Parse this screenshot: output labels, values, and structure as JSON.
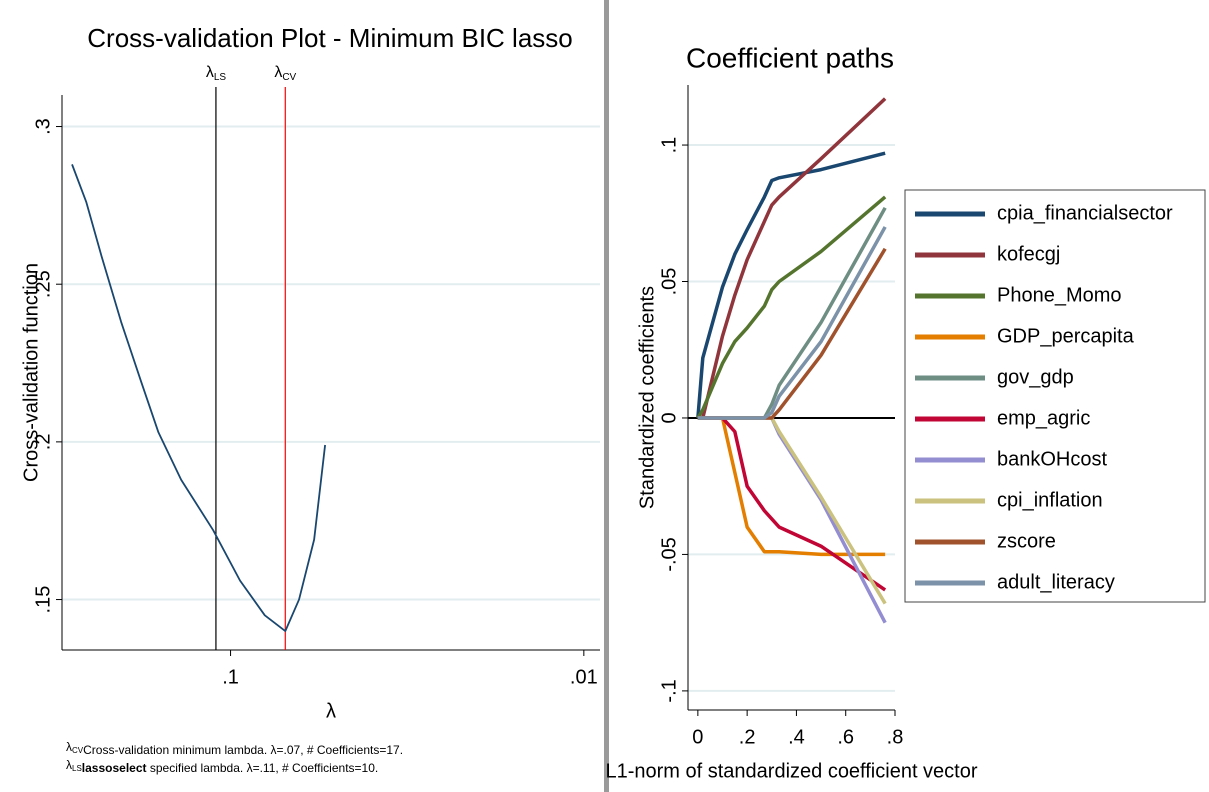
{
  "chart_data": [
    {
      "type": "line",
      "title": "Cross-validation Plot - Minimum BIC lasso",
      "xlabel": "λ",
      "ylabel": "Cross-validation function",
      "x": [
        0.281,
        0.256,
        0.232,
        0.204,
        0.179,
        0.16,
        0.138,
        0.112,
        0.094,
        0.08,
        0.07,
        0.064,
        0.058,
        0.054
      ],
      "values": [
        0.288,
        0.276,
        0.259,
        0.238,
        0.219,
        0.203,
        0.188,
        0.172,
        0.156,
        0.145,
        0.14,
        0.15,
        0.169,
        0.199
      ],
      "color": "#1a476f",
      "xscale": "log",
      "xlim": [
        0.3,
        0.009
      ],
      "xticks": [
        {
          "value": 0.1,
          "label": ".1"
        },
        {
          "value": 0.01,
          "label": ".01"
        }
      ],
      "ylim": [
        0.134,
        0.31
      ],
      "yticks": [
        {
          "value": 0.15,
          "label": ".15"
        },
        {
          "value": 0.2,
          "label": ".2"
        },
        {
          "value": 0.25,
          "label": ".25"
        },
        {
          "value": 0.3,
          "label": ".3"
        }
      ],
      "grid": true,
      "reference_lines": [
        {
          "symbol": "λ",
          "sub": "LS",
          "value": 0.11,
          "color": "#000000"
        },
        {
          "symbol": "λ",
          "sub": "CV",
          "value": 0.07,
          "color": "#ff0000"
        }
      ],
      "notes": [
        {
          "symbol": "λ",
          "sub": "CV",
          "bold": "",
          "text": "Cross-validation minimum lambda.  λ=.07, # Coefficients=17."
        },
        {
          "symbol": "λ",
          "sub": "LS",
          "bold": "lassoselect",
          "text": " specified lambda.  λ=.11, # Coefficients=10."
        }
      ]
    },
    {
      "type": "line",
      "title": "Coefficient paths",
      "xlabel": "L1-norm of standardized coefficient vector",
      "ylabel": "Standardized coefficients",
      "x": [
        0,
        0.02,
        0.1,
        0.15,
        0.2,
        0.27,
        0.3,
        0.33,
        0.5,
        0.76
      ],
      "series": [
        {
          "name": "cpia_financialsector",
          "color": "#1a476f",
          "values": [
            0,
            0.022,
            0.048,
            0.06,
            0.069,
            0.081,
            0.087,
            0.088,
            0.091,
            0.097
          ]
        },
        {
          "name": "kofecgj",
          "color": "#90353b",
          "values": [
            0,
            0,
            0.03,
            0.045,
            0.058,
            0.072,
            0.078,
            0.081,
            0.095,
            0.117
          ]
        },
        {
          "name": "Phone_Momo",
          "color": "#55752f",
          "values": [
            0,
            0.003,
            0.02,
            0.028,
            0.033,
            0.041,
            0.047,
            0.05,
            0.061,
            0.081
          ]
        },
        {
          "name": "GDP_percapita",
          "color": "#e37e00",
          "values": [
            0,
            0,
            0,
            -0.02,
            -0.04,
            -0.049,
            -0.049,
            -0.049,
            -0.05,
            -0.05
          ]
        },
        {
          "name": "gov_gdp",
          "color": "#6e8e84",
          "values": [
            0,
            0,
            0,
            0,
            0,
            0,
            0.005,
            0.012,
            0.035,
            0.077
          ]
        },
        {
          "name": "emp_agric",
          "color": "#c10534",
          "values": [
            0,
            0,
            0,
            -0.005,
            -0.025,
            -0.034,
            -0.037,
            -0.04,
            -0.047,
            -0.063
          ]
        },
        {
          "name": "bankOHcost",
          "color": "#938dd2",
          "values": [
            0,
            0,
            0,
            0,
            0,
            0,
            0,
            -0.006,
            -0.03,
            -0.075
          ]
        },
        {
          "name": "cpi_inflation",
          "color": "#cac27e",
          "values": [
            0,
            0,
            0,
            0,
            0,
            0,
            0,
            -0.005,
            -0.029,
            -0.068
          ]
        },
        {
          "name": "zscore",
          "color": "#a0522d",
          "values": [
            0,
            0,
            0,
            0,
            0,
            0,
            0,
            0.003,
            0.023,
            0.062
          ]
        },
        {
          "name": "adult_literacy",
          "color": "#7b92a8",
          "values": [
            0,
            0,
            0,
            0,
            0,
            0,
            0.002,
            0.008,
            0.028,
            0.07
          ]
        }
      ],
      "xlim": [
        -0.04,
        0.8
      ],
      "xticks": [
        0,
        {
          "value": 0.2,
          "label": ".2"
        },
        {
          "value": 0.4,
          "label": ".4"
        },
        {
          "value": 0.6,
          "label": ".6"
        },
        {
          "value": 0.8,
          "label": ".8"
        }
      ],
      "ylim": [
        -0.107,
        0.122
      ],
      "yticks": [
        {
          "value": -0.1,
          "label": "-.1"
        },
        {
          "value": -0.05,
          "label": "-.05"
        },
        0,
        {
          "value": 0.05,
          "label": ".05"
        },
        {
          "value": 0.1,
          "label": ".1"
        }
      ],
      "grid": true,
      "yline": 0,
      "legend": "right"
    }
  ]
}
